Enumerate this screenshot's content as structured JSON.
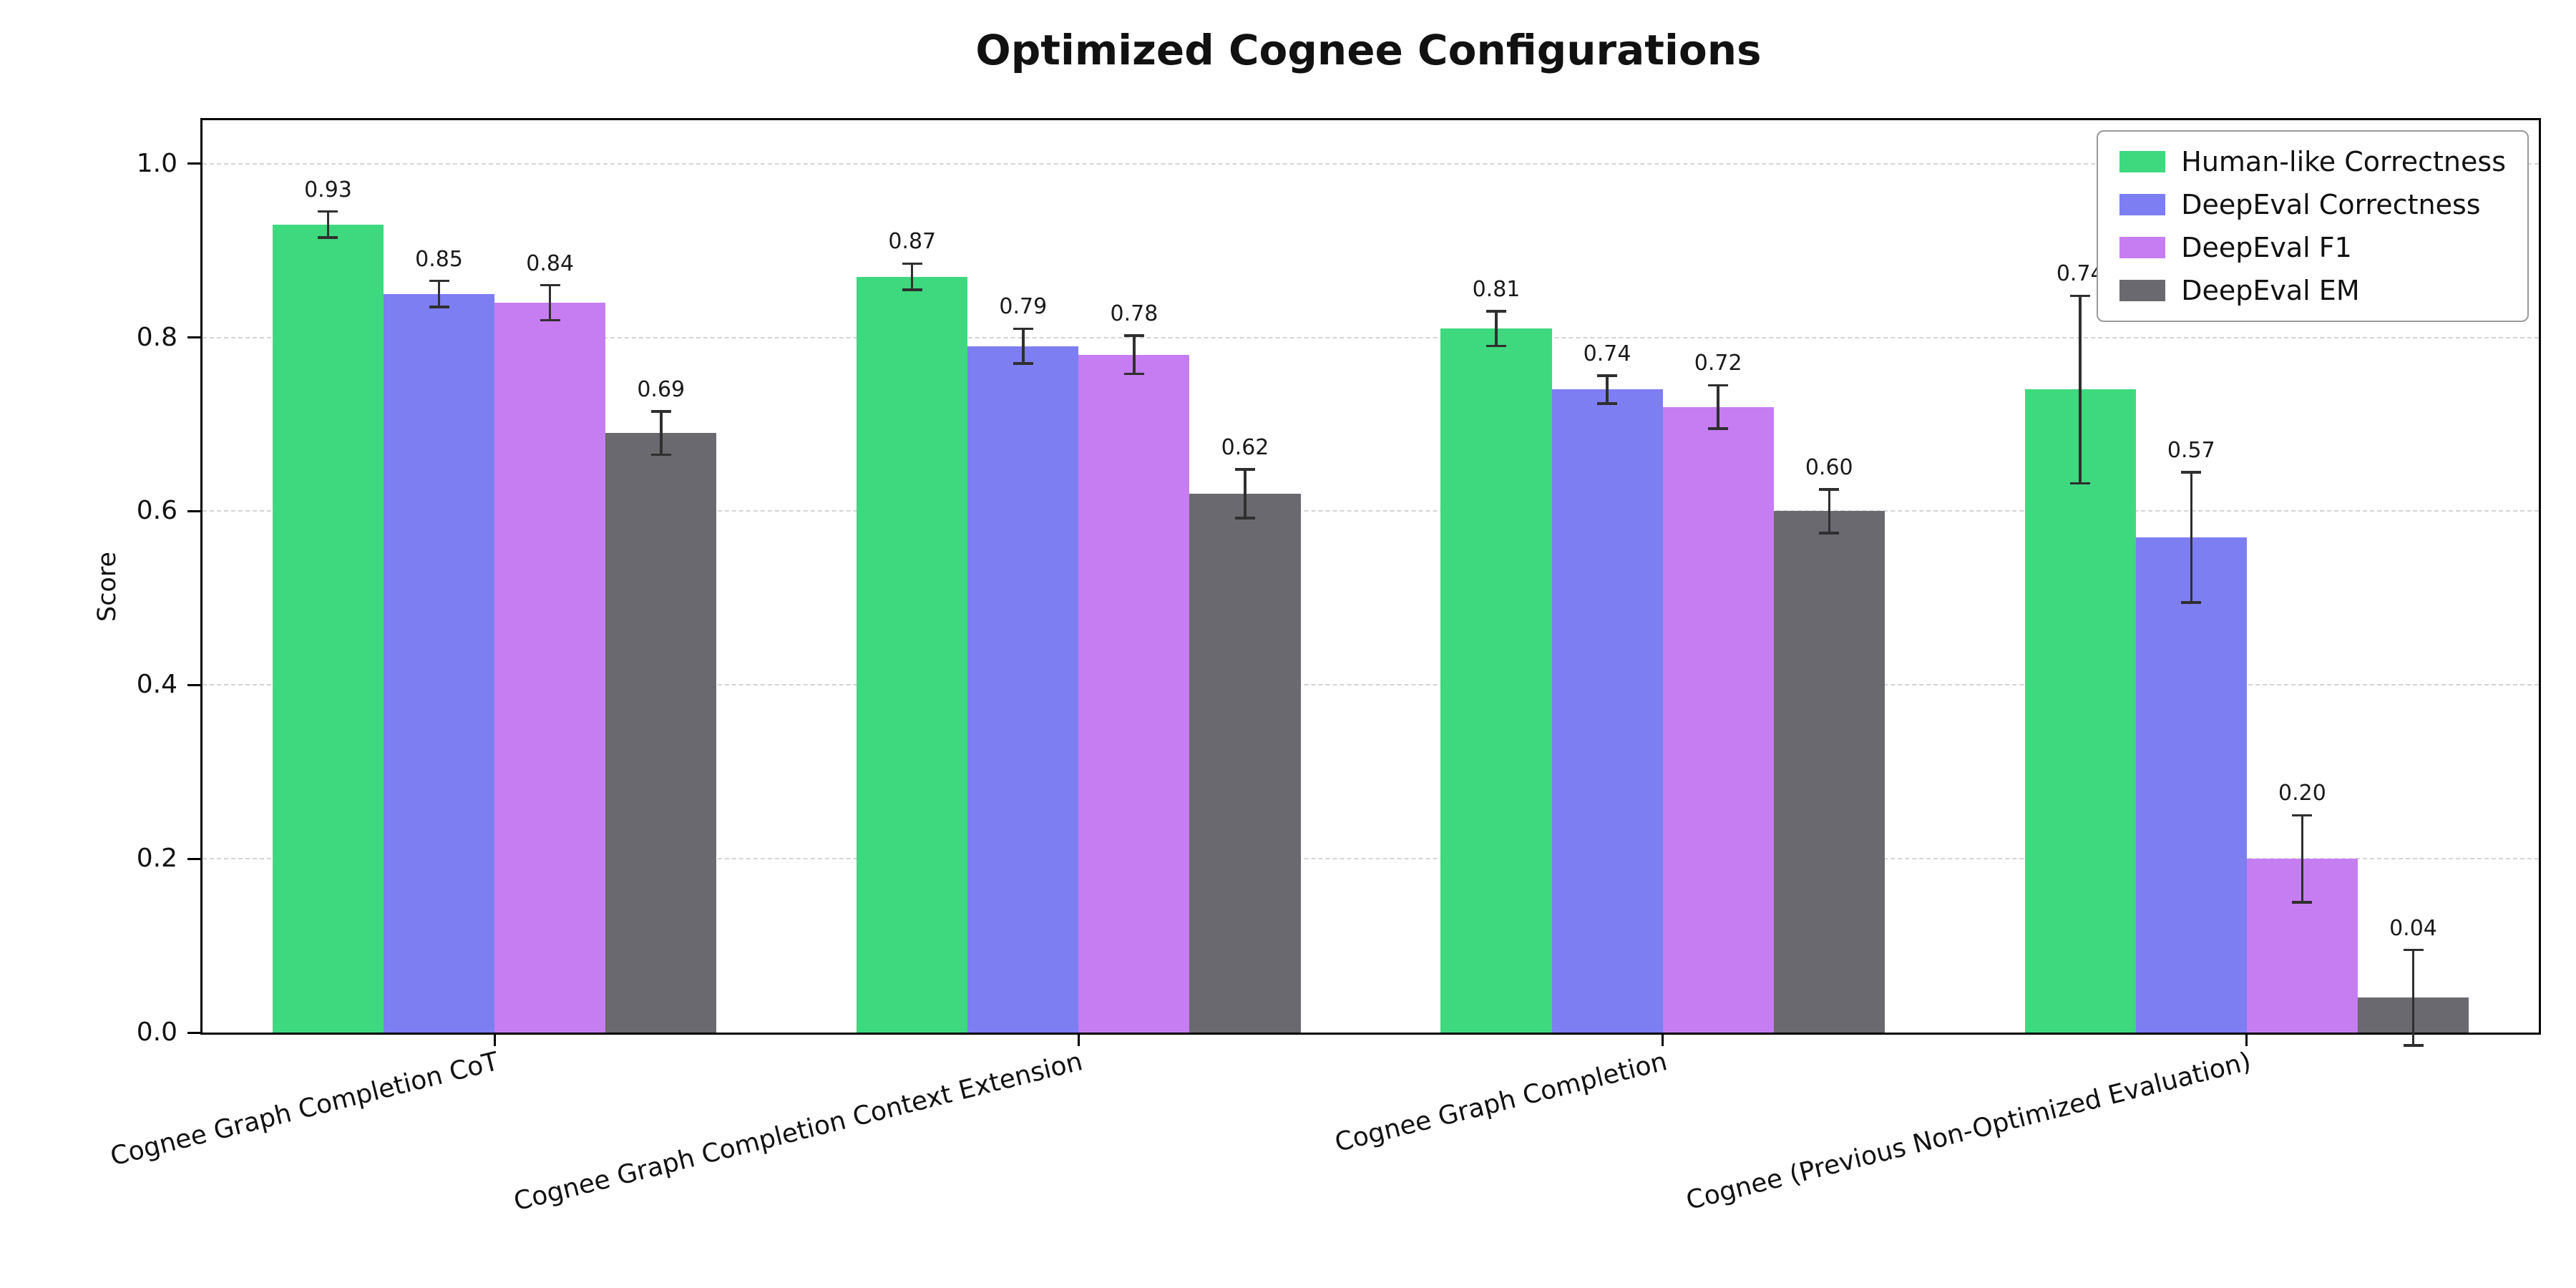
{
  "figure": {
    "title": "Optimized Cognee Configurations"
  },
  "chart_data": {
    "type": "bar",
    "title": "Optimized Cognee Configurations",
    "xlabel": "",
    "ylabel": "Score",
    "ylim": [
      0,
      1.05
    ],
    "yticks": [
      0.0,
      0.2,
      0.4,
      0.6,
      0.8,
      1.0
    ],
    "grid": "horizontal dashed",
    "legend_position": "upper right",
    "value_labels": true,
    "error_bars": true,
    "categories": [
      "Cognee Graph Completion CoT",
      "Cognee Graph Completion Context Extension",
      "Cognee Graph Completion",
      "Cognee (Previous Non-Optimized Evaluation)"
    ],
    "series": [
      {
        "name": "Human-like Correctness",
        "color": "#3ed97e",
        "values": [
          0.93,
          0.87,
          0.81,
          0.74
        ],
        "errors": [
          0.015,
          0.015,
          0.02,
          0.108
        ]
      },
      {
        "name": "DeepEval Correctness",
        "color": "#7d7ef1",
        "values": [
          0.85,
          0.79,
          0.74,
          0.57
        ],
        "errors": [
          0.015,
          0.02,
          0.016,
          0.075
        ]
      },
      {
        "name": "DeepEval F1",
        "color": "#c57df1",
        "values": [
          0.84,
          0.78,
          0.72,
          0.2
        ],
        "errors": [
          0.02,
          0.022,
          0.025,
          0.05
        ]
      },
      {
        "name": "DeepEval EM",
        "color": "#69696f",
        "values": [
          0.69,
          0.62,
          0.6,
          0.04
        ],
        "errors": [
          0.025,
          0.028,
          0.025,
          0.055
        ]
      }
    ]
  }
}
